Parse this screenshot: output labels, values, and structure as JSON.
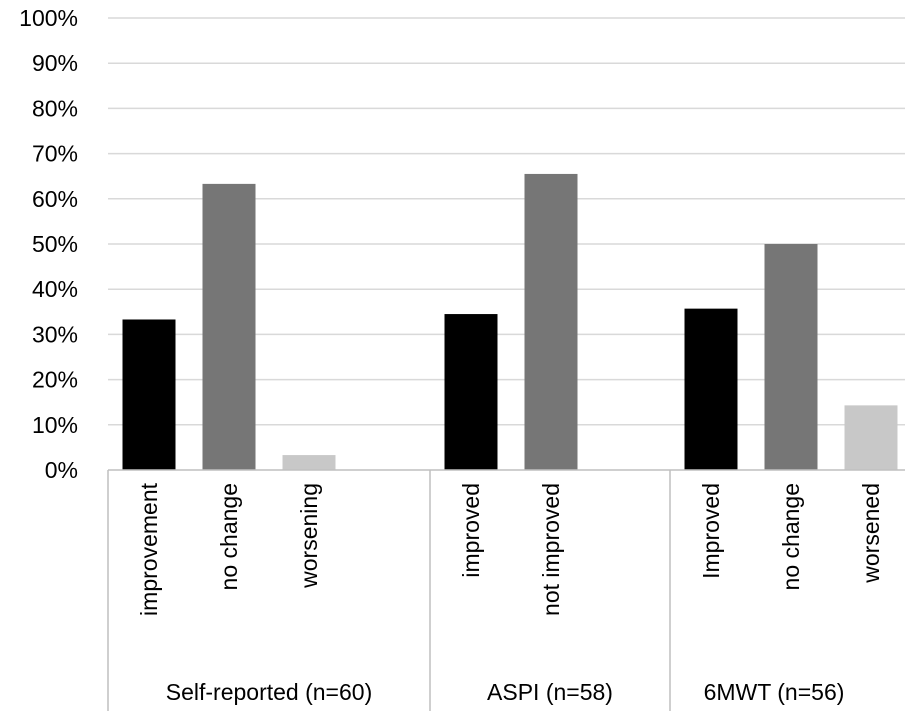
{
  "chart_data": {
    "type": "bar",
    "title": "",
    "xlabel": "",
    "ylabel": "",
    "ylim": [
      0,
      100
    ],
    "y_ticks": [
      "0%",
      "10%",
      "20%",
      "30%",
      "40%",
      "50%",
      "60%",
      "70%",
      "80%",
      "90%",
      "100%"
    ],
    "grid": true,
    "legend": "none",
    "groups": [
      {
        "label": "Self-reported (n=60)",
        "bars": [
          {
            "category": "improvement",
            "value": 33.3,
            "color": "#000000"
          },
          {
            "category": "no change",
            "value": 63.3,
            "color": "#767676"
          },
          {
            "category": "worsening",
            "value": 3.3,
            "color": "#c8c8c8"
          }
        ]
      },
      {
        "label": "ASPI (n=58)",
        "bars": [
          {
            "category": "improved",
            "value": 34.5,
            "color": "#000000"
          },
          {
            "category": "not improved",
            "value": 65.5,
            "color": "#767676"
          }
        ]
      },
      {
        "label": "6MWT (n=56)",
        "bars": [
          {
            "category": "Improved",
            "value": 35.7,
            "color": "#000000"
          },
          {
            "category": "no change",
            "value": 50.0,
            "color": "#767676"
          },
          {
            "category": "worsened",
            "value": 14.3,
            "color": "#c8c8c8"
          }
        ]
      }
    ]
  }
}
